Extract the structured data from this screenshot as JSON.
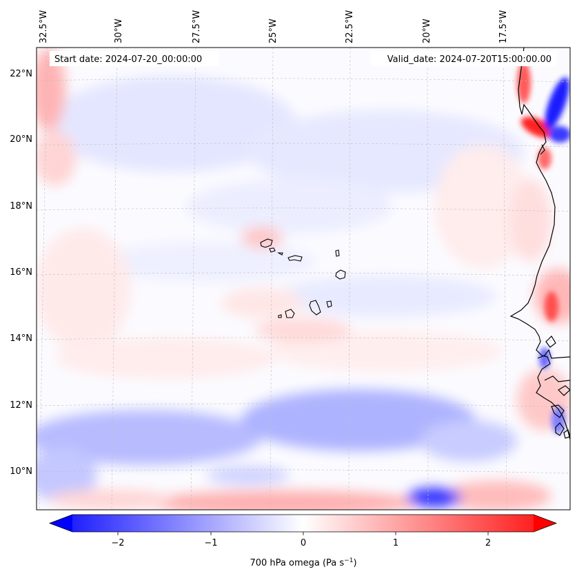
{
  "map": {
    "start_date_label": "Start date: 2024-07-20_00:00:00",
    "valid_date_label": "Valid_date: 2024-07-20T15:00:00.00",
    "lon_labels": [
      "32.5°W",
      "30°W",
      "27.5°W",
      "25°W",
      "22.5°W",
      "20°W",
      "17.5°W"
    ],
    "lat_labels": [
      "22°N",
      "20°N",
      "18°N",
      "16°N",
      "14°N",
      "12°N",
      "10°N"
    ]
  },
  "colorbar": {
    "label_main": "700 hPa omega (Pa s",
    "label_sup": "−1",
    "label_end": ")",
    "ticks": [
      "−2",
      "−1",
      "0",
      "1",
      "2"
    ],
    "min_value": -2.6,
    "max_value": 2.6,
    "colors": {
      "negative": "#0000ff",
      "neutral": "#ffffff",
      "positive": "#ff0000"
    }
  }
}
